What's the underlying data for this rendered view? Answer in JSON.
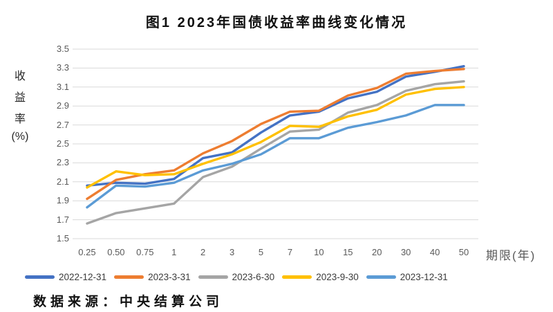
{
  "page": {
    "title": "图1 2023年国债收益率曲线变化情况",
    "source_note": "数据来源：中央结算公司"
  },
  "y_axis": {
    "title_lines": [
      "收",
      "益",
      "率",
      "(%)"
    ]
  },
  "x_axis": {
    "title": "期限(年)"
  },
  "chart_data": {
    "type": "line",
    "title": "图1 2023年国债收益率曲线变化情况",
    "xlabel": "期限(年)",
    "ylabel": "收益率(%)",
    "categories": [
      "0.25",
      "0.50",
      "0.75",
      "1",
      "2",
      "3",
      "5",
      "7",
      "10",
      "15",
      "20",
      "30",
      "40",
      "50"
    ],
    "series": [
      {
        "name": "2022-12-31",
        "color": "#4472C4",
        "values": [
          2.06,
          2.09,
          2.08,
          2.13,
          2.35,
          2.41,
          2.62,
          2.8,
          2.84,
          2.98,
          3.05,
          3.21,
          3.26,
          3.32
        ]
      },
      {
        "name": "2023-3-31",
        "color": "#ED7D31",
        "values": [
          1.92,
          2.12,
          2.18,
          2.22,
          2.4,
          2.53,
          2.71,
          2.84,
          2.85,
          3.01,
          3.09,
          3.24,
          3.27,
          3.29
        ]
      },
      {
        "name": "2023-6-30",
        "color": "#A5A5A5",
        "values": [
          1.66,
          1.77,
          1.82,
          1.87,
          2.15,
          2.26,
          2.45,
          2.63,
          2.65,
          2.83,
          2.91,
          3.06,
          3.13,
          3.16
        ]
      },
      {
        "name": "2023-9-30",
        "color": "#FFC000",
        "values": [
          2.04,
          2.21,
          2.17,
          2.18,
          2.29,
          2.39,
          2.52,
          2.69,
          2.68,
          2.79,
          2.86,
          3.02,
          3.08,
          3.1
        ]
      },
      {
        "name": "2023-12-31",
        "color": "#5B9BD5",
        "values": [
          1.83,
          2.06,
          2.05,
          2.09,
          2.22,
          2.29,
          2.39,
          2.56,
          2.56,
          2.67,
          2.73,
          2.8,
          2.91,
          2.91
        ]
      }
    ],
    "ylim": [
      1.5,
      3.5
    ],
    "yticks": [
      "1.5",
      "1.7",
      "1.9",
      "2.1",
      "2.3",
      "2.5",
      "2.7",
      "2.9",
      "3.1",
      "3.3",
      "3.5"
    ],
    "grid": "horizontal",
    "gridline_color": "#D9D9D9",
    "legend_position": "bottom"
  }
}
